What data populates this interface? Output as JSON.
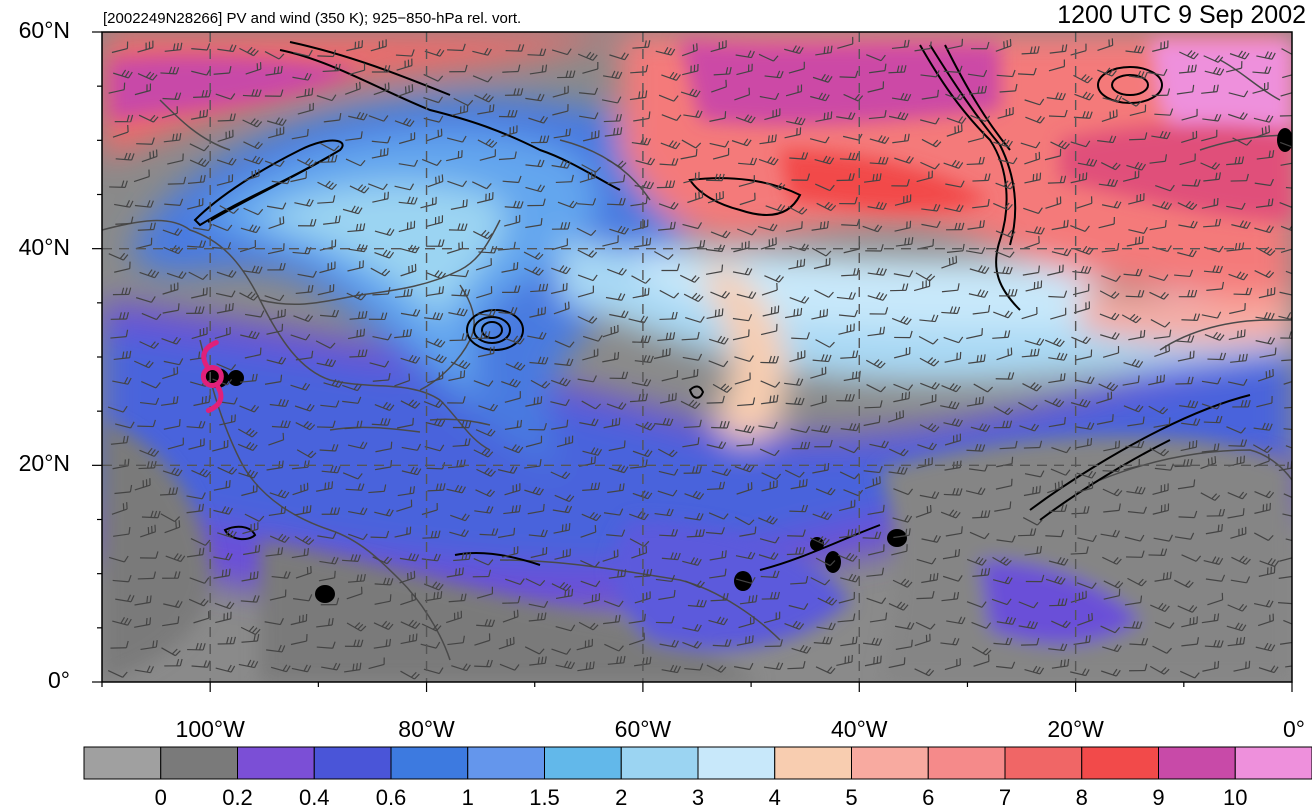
{
  "header": {
    "left_title": "[2002249N28266] PV and wind (350 K); 925−850-hPa rel. vort.",
    "right_title": "1200 UTC 9 Sep 2002"
  },
  "axes": {
    "lat_labels": [
      {
        "text": "60°N",
        "value": 60
      },
      {
        "text": "40°N",
        "value": 40
      },
      {
        "text": "20°N",
        "value": 20
      },
      {
        "text": "0°",
        "value": 0
      }
    ],
    "lon_labels": [
      {
        "text": "100°W",
        "value": -100
      },
      {
        "text": "80°W",
        "value": -80
      },
      {
        "text": "60°W",
        "value": -60
      },
      {
        "text": "40°W",
        "value": -40
      },
      {
        "text": "20°W",
        "value": -20
      },
      {
        "text": "0°",
        "value": 0
      }
    ],
    "lat_range": [
      0,
      60
    ],
    "lon_range": [
      -110,
      0
    ]
  },
  "colorbar": {
    "levels": [
      "0",
      "0.2",
      "0.4",
      "0.6",
      "1",
      "1.5",
      "2",
      "3",
      "4",
      "5",
      "6",
      "7",
      "8",
      "9",
      "10"
    ],
    "colors": [
      "#a0a0a0",
      "#7a7a7a",
      "#7b4fd6",
      "#4a55d8",
      "#3d7ae0",
      "#6496ec",
      "#62b8ea",
      "#9bd4f2",
      "#c8e8fa",
      "#f8cdb0",
      "#f8aaa0",
      "#f58a8a",
      "#f06666",
      "#f24a4a",
      "#c84aa8",
      "#ee90dc"
    ]
  },
  "storm": {
    "symbol": "tropical-cyclone-symbol",
    "lat": 28.2,
    "lon": -99.8,
    "color": "#e0207a"
  }
}
